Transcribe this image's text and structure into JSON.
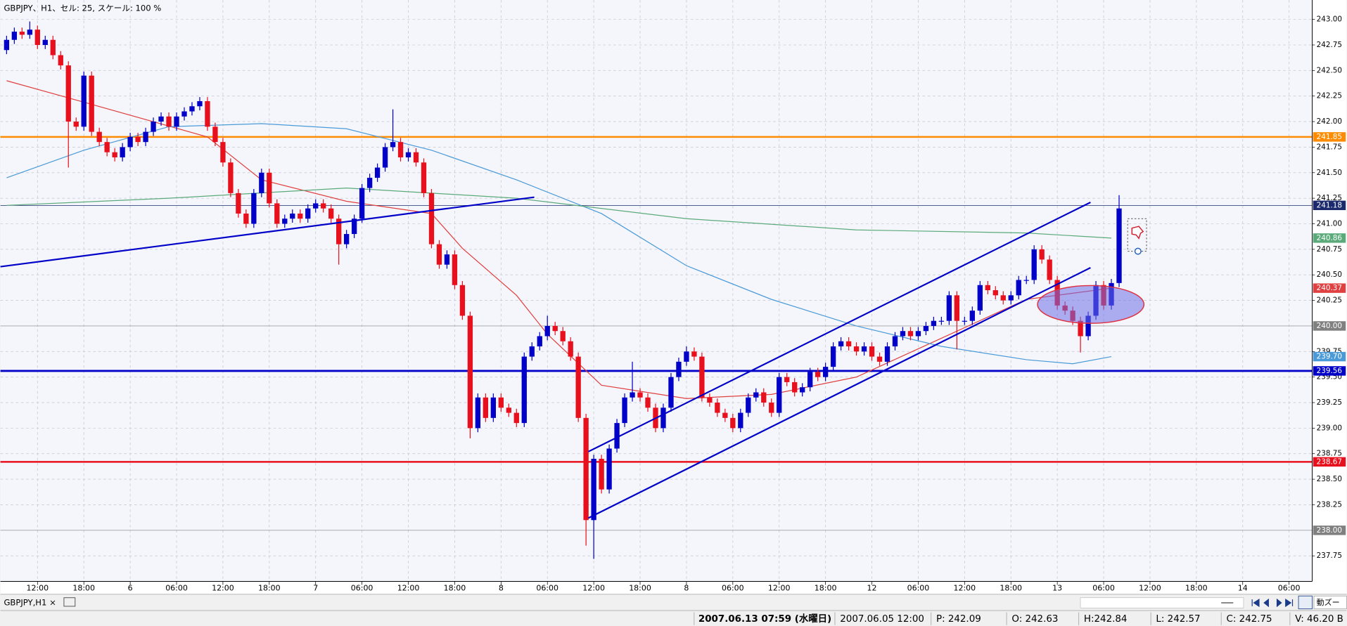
{
  "header": {
    "title": "GBPJPY、H1、セル: 25, スケール: 100 %"
  },
  "chart_data": {
    "type": "candlestick",
    "up_color": "#0000c8",
    "down_color": "#e8101c",
    "open": [
      242.7,
      242.8,
      242.88,
      242.85,
      242.9,
      242.75,
      242.8,
      242.65,
      242.55,
      242.0,
      241.95,
      242.45,
      241.9,
      241.8,
      241.7,
      241.65,
      241.75,
      241.85,
      241.8,
      241.9,
      242.0,
      242.05,
      241.95,
      242.05,
      242.1,
      242.15,
      242.2,
      241.95,
      241.8,
      241.6,
      241.3,
      241.1,
      241.0,
      241.3,
      241.5,
      241.2,
      241.0,
      241.05,
      241.1,
      241.05,
      241.15,
      241.2,
      241.15,
      241.05,
      240.8,
      240.9,
      241.05,
      241.35,
      241.45,
      241.55,
      241.75,
      241.8,
      241.65,
      241.7,
      241.6,
      241.3,
      240.8,
      240.6,
      240.7,
      240.4,
      240.1,
      239.0,
      239.3,
      239.1,
      239.3,
      239.2,
      239.15,
      239.05,
      239.7,
      239.8,
      239.9,
      240.0,
      239.95,
      239.85,
      239.7,
      239.1,
      238.1,
      238.7,
      238.4,
      238.8,
      239.05,
      239.3,
      239.35,
      239.3,
      239.2,
      239.0,
      239.2,
      239.5,
      239.65,
      239.75,
      239.7,
      239.3,
      239.25,
      239.15,
      239.1,
      239.0,
      239.15,
      239.3,
      239.35,
      239.25,
      239.15,
      239.5,
      239.45,
      239.35,
      239.4,
      239.55,
      239.5,
      239.6,
      239.8,
      239.85,
      239.8,
      239.75,
      239.8,
      239.7,
      239.65,
      239.8,
      239.9,
      239.95,
      239.9,
      239.95,
      240.0,
      240.05,
      240.05,
      240.3,
      240.05,
      240.05,
      240.15,
      240.4,
      240.35,
      240.3,
      240.25,
      240.3,
      240.45,
      240.45,
      240.75,
      240.65,
      240.45,
      240.2,
      240.15,
      240.05,
      239.9,
      240.1,
      240.4,
      240.2,
      240.42
    ],
    "high": [
      242.84,
      242.92,
      242.92,
      242.98,
      242.94,
      242.84,
      242.84,
      242.69,
      242.59,
      242.04,
      242.49,
      242.49,
      241.94,
      241.84,
      241.74,
      241.79,
      241.89,
      241.89,
      241.94,
      242.04,
      242.09,
      242.09,
      242.09,
      242.14,
      242.19,
      242.24,
      242.24,
      241.99,
      241.84,
      241.64,
      241.34,
      241.14,
      241.34,
      241.54,
      241.54,
      241.24,
      241.09,
      241.14,
      241.14,
      241.19,
      241.24,
      241.24,
      241.19,
      241.09,
      240.94,
      241.09,
      241.39,
      241.49,
      241.59,
      241.79,
      242.12,
      241.84,
      241.74,
      241.74,
      241.64,
      241.34,
      240.84,
      240.74,
      240.74,
      240.44,
      240.14,
      239.34,
      239.34,
      239.34,
      239.34,
      239.24,
      239.19,
      239.74,
      239.84,
      239.94,
      240.1,
      240.04,
      239.99,
      239.89,
      239.74,
      239.14,
      238.74,
      238.74,
      238.84,
      239.09,
      239.34,
      239.65,
      239.39,
      239.34,
      239.24,
      239.24,
      239.54,
      239.69,
      239.8,
      239.79,
      239.74,
      239.34,
      239.29,
      239.19,
      239.14,
      239.19,
      239.34,
      239.39,
      239.39,
      239.29,
      239.54,
      239.54,
      239.49,
      239.44,
      239.59,
      239.59,
      239.64,
      239.84,
      239.89,
      239.89,
      239.84,
      239.84,
      239.84,
      239.74,
      239.84,
      239.94,
      239.99,
      239.99,
      239.99,
      240.04,
      240.09,
      240.09,
      240.34,
      240.34,
      240.09,
      240.19,
      240.44,
      240.44,
      240.39,
      240.34,
      240.34,
      240.49,
      240.49,
      240.79,
      240.79,
      240.69,
      240.49,
      240.24,
      240.19,
      240.09,
      240.14,
      240.44,
      240.44,
      240.46,
      241.28
    ],
    "low": [
      242.66,
      242.76,
      242.81,
      242.81,
      242.71,
      242.71,
      242.61,
      242.51,
      241.55,
      241.91,
      241.91,
      241.86,
      241.76,
      241.66,
      241.61,
      241.61,
      241.71,
      241.76,
      241.76,
      241.86,
      241.96,
      241.91,
      241.91,
      242.01,
      242.06,
      242.11,
      241.91,
      241.76,
      241.56,
      241.26,
      241.06,
      240.96,
      240.96,
      241.26,
      241.16,
      240.96,
      240.96,
      241.01,
      241.01,
      241.01,
      241.11,
      241.11,
      241.01,
      240.6,
      240.76,
      240.86,
      241.01,
      241.31,
      241.41,
      241.51,
      241.71,
      241.61,
      241.61,
      241.56,
      241.26,
      240.76,
      240.56,
      240.56,
      240.36,
      240.06,
      238.9,
      238.96,
      239.06,
      239.06,
      239.16,
      239.11,
      239.01,
      239.01,
      239.66,
      239.76,
      239.86,
      239.91,
      239.81,
      239.66,
      239.06,
      237.85,
      237.72,
      238.36,
      238.36,
      238.76,
      239.01,
      239.26,
      239.26,
      239.16,
      238.96,
      238.96,
      239.16,
      239.46,
      239.61,
      239.66,
      239.26,
      239.21,
      239.11,
      239.06,
      238.96,
      238.96,
      239.11,
      239.26,
      239.21,
      239.11,
      239.11,
      239.41,
      239.31,
      239.31,
      239.36,
      239.46,
      239.46,
      239.56,
      239.76,
      239.76,
      239.71,
      239.71,
      239.66,
      239.61,
      239.61,
      239.76,
      239.86,
      239.86,
      239.86,
      239.91,
      239.96,
      240.01,
      240.01,
      239.77,
      240.01,
      240.01,
      240.11,
      240.31,
      240.26,
      240.21,
      240.21,
      240.26,
      240.41,
      240.41,
      240.61,
      240.41,
      240.16,
      240.11,
      240.01,
      239.74,
      239.86,
      240.06,
      240.16,
      240.16,
      240.38
    ],
    "close": [
      242.8,
      242.88,
      242.85,
      242.9,
      242.75,
      242.8,
      242.65,
      242.55,
      242.0,
      241.95,
      242.45,
      241.9,
      241.8,
      241.7,
      241.65,
      241.75,
      241.85,
      241.8,
      241.9,
      242.0,
      242.05,
      241.95,
      242.05,
      242.1,
      242.15,
      242.2,
      241.95,
      241.8,
      241.6,
      241.3,
      241.1,
      241.0,
      241.3,
      241.5,
      241.2,
      241.0,
      241.05,
      241.1,
      241.05,
      241.15,
      241.2,
      241.15,
      241.05,
      240.8,
      240.9,
      241.05,
      241.35,
      241.45,
      241.55,
      241.75,
      241.8,
      241.65,
      241.7,
      241.6,
      241.3,
      240.8,
      240.6,
      240.7,
      240.4,
      240.1,
      239.0,
      239.3,
      239.1,
      239.3,
      239.2,
      239.15,
      239.05,
      239.7,
      239.8,
      239.9,
      240.0,
      239.95,
      239.85,
      239.7,
      239.1,
      238.1,
      238.7,
      238.4,
      238.8,
      239.05,
      239.3,
      239.35,
      239.3,
      239.2,
      239.0,
      239.2,
      239.5,
      239.65,
      239.75,
      239.7,
      239.3,
      239.25,
      239.15,
      239.1,
      239.0,
      239.15,
      239.3,
      239.35,
      239.25,
      239.15,
      239.5,
      239.45,
      239.35,
      239.4,
      239.55,
      239.5,
      239.6,
      239.8,
      239.85,
      239.8,
      239.75,
      239.8,
      239.7,
      239.65,
      239.8,
      239.9,
      239.95,
      239.9,
      239.95,
      240.0,
      240.05,
      240.05,
      240.3,
      240.05,
      240.05,
      240.15,
      240.4,
      240.35,
      240.3,
      240.25,
      240.3,
      240.45,
      240.45,
      240.75,
      240.65,
      240.45,
      240.2,
      240.15,
      240.05,
      239.9,
      240.1,
      240.4,
      240.2,
      240.42,
      241.15
    ],
    "xlim": [
      -0.8,
      169
    ],
    "ylim": [
      237.5,
      243.19
    ],
    "grid": true,
    "xticks": [
      {
        "value": 4,
        "label": "12:00"
      },
      {
        "value": 10,
        "label": "18:00"
      },
      {
        "value": 16,
        "label": "6"
      },
      {
        "value": 22,
        "label": "06:00"
      },
      {
        "value": 28,
        "label": "12:00"
      },
      {
        "value": 34,
        "label": "18:00"
      },
      {
        "value": 40,
        "label": "7"
      },
      {
        "value": 46,
        "label": "06:00"
      },
      {
        "value": 52,
        "label": "12:00"
      },
      {
        "value": 58,
        "label": "18:00"
      },
      {
        "value": 64,
        "label": "8"
      },
      {
        "value": 70,
        "label": "06:00"
      },
      {
        "value": 76,
        "label": "12:00"
      },
      {
        "value": 82,
        "label": "18:00"
      },
      {
        "value": 88,
        "label": "8"
      },
      {
        "value": 94,
        "label": "06:00"
      },
      {
        "value": 100,
        "label": "12:00"
      },
      {
        "value": 106,
        "label": "18:00"
      },
      {
        "value": 112,
        "label": "12"
      },
      {
        "value": 118,
        "label": "06:00"
      },
      {
        "value": 124,
        "label": "12:00"
      },
      {
        "value": 130,
        "label": "18:00"
      },
      {
        "value": 136,
        "label": "13"
      },
      {
        "value": 142,
        "label": "06:00"
      },
      {
        "value": 148,
        "label": "12:00"
      },
      {
        "value": 154,
        "label": "18:00"
      },
      {
        "value": 160,
        "label": "14"
      },
      {
        "value": 166,
        "label": "06:00"
      }
    ],
    "yticks": [
      {
        "value": 243,
        "label": "243.00"
      },
      {
        "value": 242.75,
        "label": "242.75"
      },
      {
        "value": 242.5,
        "label": "242.50"
      },
      {
        "value": 242.25,
        "label": "242.25"
      },
      {
        "value": 242,
        "label": "242.00"
      },
      {
        "value": 241.75,
        "label": "241.75"
      },
      {
        "value": 241.5,
        "label": "241.50"
      },
      {
        "value": 241.25,
        "label": "241.25"
      },
      {
        "value": 241,
        "label": "241.00"
      },
      {
        "value": 240.75,
        "label": "240.75"
      },
      {
        "value": 240.5,
        "label": "240.50"
      },
      {
        "value": 240.25,
        "label": "240.25"
      },
      {
        "value": 239.75,
        "label": "239.75"
      },
      {
        "value": 239.5,
        "label": "239.50"
      },
      {
        "value": 239.25,
        "label": "239.25"
      },
      {
        "value": 239,
        "label": "239.00"
      },
      {
        "value": 238.75,
        "label": "238.75"
      },
      {
        "value": 238.5,
        "label": "238.50"
      },
      {
        "value": 238.25,
        "label": "238.25"
      },
      {
        "value": 237.75,
        "label": "237.75"
      }
    ],
    "moving_averages": [
      {
        "color": "#e04040",
        "label": "240.37",
        "x": [
          0,
          10,
          26,
          33,
          44,
          55,
          59,
          66,
          70,
          77,
          88,
          99,
          110,
          121,
          132,
          143
        ],
        "values": [
          242.4,
          242.19,
          241.85,
          241.43,
          241.22,
          241.1,
          240.76,
          240.3,
          239.92,
          239.42,
          239.29,
          239.33,
          239.5,
          239.88,
          240.26,
          240.37
        ]
      },
      {
        "color": "#4a9ad8",
        "label": "239.70",
        "x": [
          0,
          10,
          21,
          33,
          44,
          55,
          66,
          77,
          88,
          99,
          110,
          121,
          132,
          138,
          143
        ],
        "values": [
          241.45,
          241.72,
          241.95,
          241.98,
          241.93,
          241.72,
          241.43,
          241.1,
          240.59,
          240.26,
          240.0,
          239.8,
          239.67,
          239.63,
          239.7
        ]
      },
      {
        "color": "#5aaa7a",
        "label": "240.86",
        "x": [
          0,
          21,
          44,
          66,
          88,
          110,
          132,
          143
        ],
        "values": [
          241.18,
          241.25,
          241.35,
          241.25,
          241.05,
          240.94,
          240.91,
          240.86
        ]
      }
    ],
    "hlines": [
      {
        "value": 241.85,
        "label": "241.85",
        "color": "#ff8c00",
        "width": 2
      },
      {
        "value": 241.18,
        "label": "241.18",
        "color": "#1a2a6c",
        "width": 0.6
      },
      {
        "value": 240.0,
        "label": "240.00",
        "color": "#808080",
        "width": 0.6
      },
      {
        "value": 239.56,
        "label": "239.56",
        "color": "#0000c8",
        "width": 2.4
      },
      {
        "value": 238.67,
        "label": "238.67",
        "color": "#e8101c",
        "width": 2
      },
      {
        "value": 238.0,
        "label": "238.00",
        "color": "#808080",
        "width": 0.6
      }
    ],
    "trendlines": [
      {
        "x": [
          -0.8,
          68.3
        ],
        "y": [
          240.58,
          241.26
        ],
        "color": "#0000c8"
      },
      {
        "x": [
          75.3,
          140.3
        ],
        "y": [
          238.77,
          241.21
        ],
        "color": "#0000c8"
      },
      {
        "x": [
          75.3,
          140.3
        ],
        "y": [
          238.12,
          240.57
        ],
        "color": "#0000c8"
      }
    ]
  },
  "tab": {
    "label": "GBPJPY,H1",
    "close": "×"
  },
  "zoom_button": "動ズー",
  "status_bar": {
    "datetime": "2007.06.13 07:59 (水曜日)",
    "bar_time": "2007.06.05 12:00",
    "price": "P: 242.09",
    "open": "O: 242.63",
    "high": "H:242.84",
    "low": "L: 242.57",
    "close": "C: 242.75",
    "volume": "V: 46.20 B"
  }
}
